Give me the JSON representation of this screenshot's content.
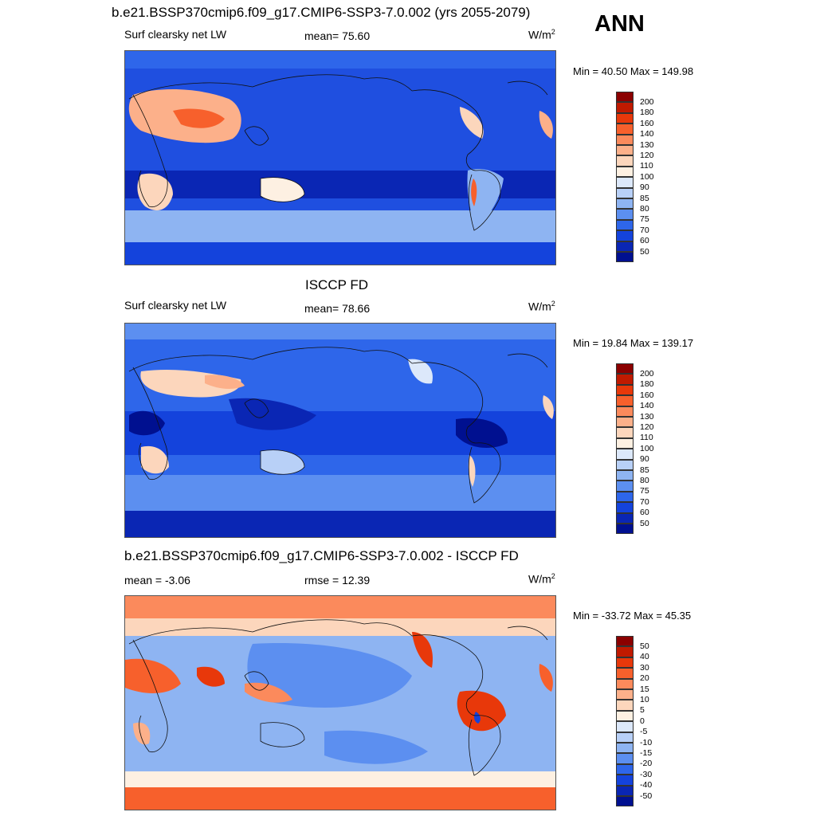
{
  "season": "ANN",
  "panels": [
    {
      "id": "model",
      "title": "b.e21.BSSP370cmip6.f09_g17.CMIP6-SSP3-7.0.002 (yrs 2055-2079)",
      "left_label": "Surf clearsky net LW",
      "center_label": "mean=  75.60",
      "units_base": "W/m",
      "units_exp": "2",
      "minmax": "Min =  40.50 Max = 149.98",
      "colorbar_levels": [
        "200",
        "180",
        "160",
        "140",
        "130",
        "120",
        "110",
        "100",
        "90",
        "85",
        "80",
        "75",
        "70",
        "60",
        "50"
      ],
      "colorbar_colors": [
        "#8b0000",
        "#c01a00",
        "#e8380a",
        "#f7602c",
        "#fb8a5c",
        "#fcb08a",
        "#fcd6bc",
        "#fdf0e2",
        "#dce8fa",
        "#b8d0f7",
        "#8eb4f2",
        "#5c8ff0",
        "#2e66ea",
        "#1443dc",
        "#0a26b4",
        "#001090"
      ]
    },
    {
      "id": "obs",
      "title": "ISCCP FD",
      "left_label": "Surf clearsky net LW",
      "center_label": "mean=  78.66",
      "units_base": "W/m",
      "units_exp": "2",
      "minmax": "Min =  19.84 Max = 139.17",
      "colorbar_levels": [
        "200",
        "180",
        "160",
        "140",
        "130",
        "120",
        "110",
        "100",
        "90",
        "85",
        "80",
        "75",
        "70",
        "60",
        "50"
      ],
      "colorbar_colors": [
        "#8b0000",
        "#c01a00",
        "#e8380a",
        "#f7602c",
        "#fb8a5c",
        "#fcb08a",
        "#fcd6bc",
        "#fdf0e2",
        "#dce8fa",
        "#b8d0f7",
        "#8eb4f2",
        "#5c8ff0",
        "#2e66ea",
        "#1443dc",
        "#0a26b4",
        "#001090"
      ]
    },
    {
      "id": "diff",
      "title": "b.e21.BSSP370cmip6.f09_g17.CMIP6-SSP3-7.0.002 - ISCCP FD",
      "left_label": "mean =  -3.06",
      "center_label": "rmse =  12.39",
      "units_base": "W/m",
      "units_exp": "2",
      "minmax": "Min = -33.72 Max =  45.35",
      "colorbar_levels": [
        "50",
        "40",
        "30",
        "20",
        "15",
        "10",
        "5",
        "0",
        "-5",
        "-10",
        "-15",
        "-20",
        "-30",
        "-40",
        "-50"
      ],
      "colorbar_colors": [
        "#8b0000",
        "#c01a00",
        "#e8380a",
        "#f7602c",
        "#fb8a5c",
        "#fcb08a",
        "#fcd6bc",
        "#fdf0e2",
        "#dce8fa",
        "#b8d0f7",
        "#8eb4f2",
        "#5c8ff0",
        "#2e66ea",
        "#1443dc",
        "#0a26b4",
        "#001090"
      ]
    }
  ]
}
